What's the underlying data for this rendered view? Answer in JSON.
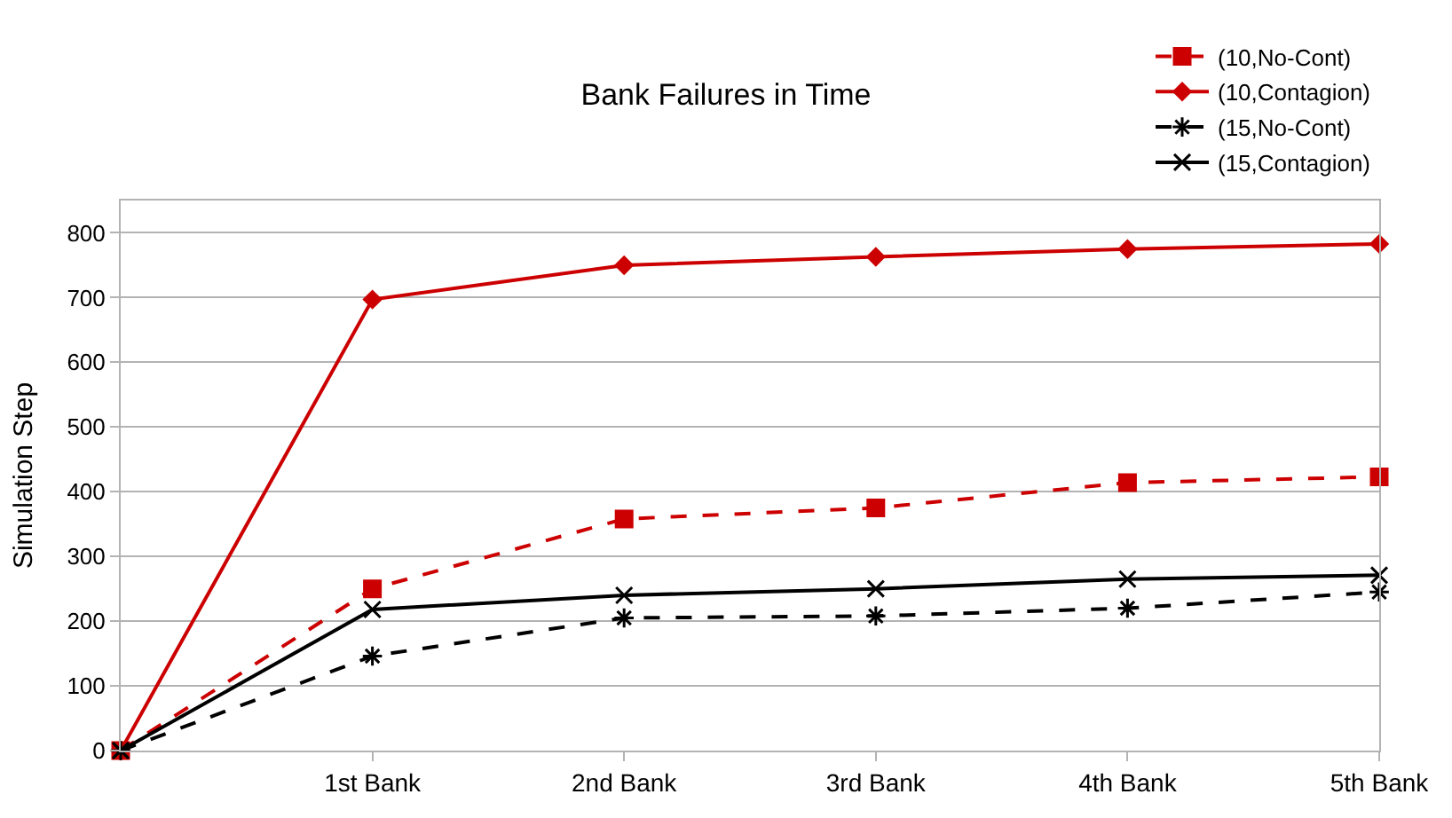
{
  "chart_data": {
    "type": "line",
    "title": "Bank Failures in Time",
    "ylabel": "Simulation Step",
    "categories": [
      null,
      "1st Bank",
      "2nd Bank",
      "3rd Bank",
      "4th Bank",
      "5th Bank"
    ],
    "ylim": [
      0,
      850
    ],
    "yticks": [
      0,
      100,
      200,
      300,
      400,
      500,
      600,
      700,
      800
    ],
    "grid": "y",
    "legend": "top right",
    "series": [
      {
        "name": "(10,No-Cont)",
        "color": "#cc0000",
        "marker": "square",
        "line_style": "dashed",
        "values": [
          0,
          250,
          358,
          375,
          414,
          423
        ]
      },
      {
        "name": "(10,Contagion)",
        "color": "#cc0000",
        "marker": "diamond",
        "line_style": "solid",
        "values": [
          0,
          697,
          750,
          763,
          775,
          783
        ]
      },
      {
        "name": "(15,No-Cont)",
        "color": "#000000",
        "marker": "cross",
        "line_style": "dashed",
        "values": [
          0,
          146,
          205,
          208,
          220,
          245
        ]
      },
      {
        "name": "(15,Contagion)",
        "color": "#000000",
        "marker": "cross",
        "line_style": "solid",
        "values": [
          0,
          218,
          240,
          250,
          265,
          271
        ]
      }
    ]
  }
}
